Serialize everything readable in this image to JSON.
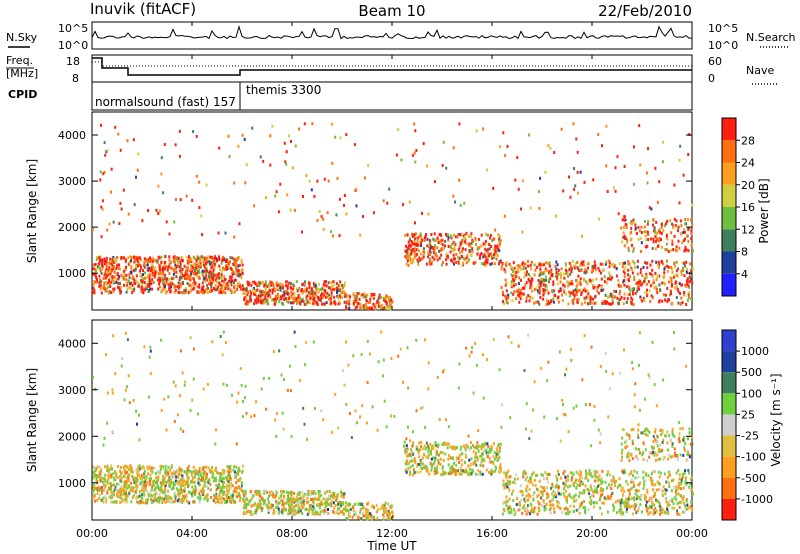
{
  "header": {
    "station": "Inuvik (fitACF)",
    "beam": "Beam 10",
    "date": "22/Feb/2010"
  },
  "params": {
    "nsky_label": "N.Sky",
    "nsearch_label": "N.Search",
    "freq_label_1": "Freq.",
    "freq_label_2": "[MHz]",
    "nave_label": "Nave",
    "cpid_label": "CPID",
    "noise_left_ticks": [
      "10^5",
      "10^0"
    ],
    "noise_right_ticks": [
      "10^5",
      "10^0"
    ],
    "freq_left_ticks": [
      "18",
      "8"
    ],
    "freq_right_ticks": [
      "60",
      "0"
    ],
    "cpid_modes": [
      "normalsound (fast) 157",
      "themis 3300"
    ]
  },
  "colors": {
    "power_scale": [
      "#1f1fff",
      "#1f3f9f",
      "#3f7f5f",
      "#6fbf3f",
      "#cfcf3f",
      "#ff9f1f",
      "#ff6f0f",
      "#ff1f0f"
    ],
    "velocity_scale": [
      "#ff1f0f",
      "#ff6f0f",
      "#ff9f1f",
      "#dfbf3f",
      "#cfcfcf",
      "#6fcf3f",
      "#3f7f5f",
      "#1f3f9f",
      "#2f3fcf"
    ]
  },
  "chart_data": [
    {
      "type": "heatmap",
      "panel": "power",
      "ylabel": "Slant Range [km]",
      "yticks": [
        "1000",
        "2000",
        "3000",
        "4000"
      ],
      "ylim": [
        200,
        4500
      ],
      "colorbar_label": "Power [dB]",
      "colorbar_ticks": [
        "4",
        "8",
        "12",
        "16",
        "20",
        "24",
        "28"
      ],
      "colorbar_range": [
        0,
        32
      ]
    },
    {
      "type": "heatmap",
      "panel": "velocity",
      "ylabel": "Slant Range [km]",
      "yticks": [
        "1000",
        "2000",
        "3000",
        "4000"
      ],
      "ylim": [
        200,
        4500
      ],
      "colorbar_label": "Velocity [m s⁻¹]",
      "colorbar_ticks": [
        "1000",
        "500",
        "100",
        "25",
        "-25",
        "-100",
        "-500",
        "-1000"
      ]
    }
  ],
  "xaxis": {
    "label": "Time UT",
    "ticks": [
      "00:00",
      "04:00",
      "08:00",
      "12:00",
      "16:00",
      "20:00",
      "00:00"
    ]
  }
}
